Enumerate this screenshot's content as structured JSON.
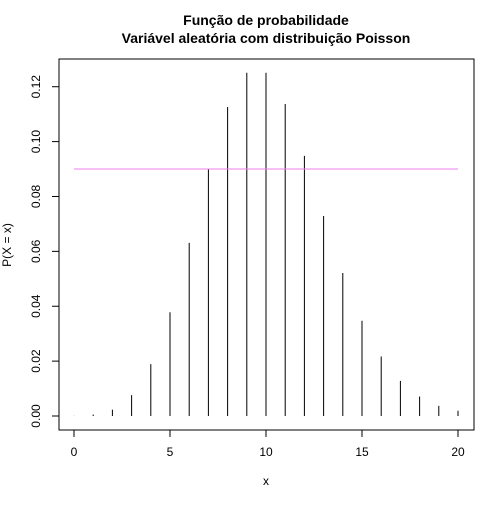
{
  "chart_data": {
    "type": "bar",
    "title": "Função de probabilidade",
    "subtitle": "Variável aleatória com distribuição Poisson",
    "xlabel": "x",
    "ylabel": "P(X = x)",
    "x": [
      0,
      1,
      2,
      3,
      4,
      5,
      6,
      7,
      8,
      9,
      10,
      11,
      12,
      13,
      14,
      15,
      16,
      17,
      18,
      19,
      20
    ],
    "values": [
      5e-05,
      0.0005,
      0.0023,
      0.0076,
      0.0189,
      0.0378,
      0.0631,
      0.0901,
      0.1126,
      0.1251,
      0.1251,
      0.1137,
      0.0948,
      0.0729,
      0.0521,
      0.0347,
      0.0217,
      0.0128,
      0.0071,
      0.0037,
      0.0019
    ],
    "xlim": [
      0,
      20
    ],
    "ylim": [
      0,
      0.125
    ],
    "x_ticks": [
      0,
      5,
      10,
      15,
      20
    ],
    "x_tick_labels": [
      "0",
      "5",
      "10",
      "15",
      "20"
    ],
    "y_ticks": [
      0,
      0.02,
      0.04,
      0.06,
      0.08,
      0.1,
      0.12
    ],
    "y_tick_labels": [
      "0.00",
      "0.02",
      "0.04",
      "0.06",
      "0.08",
      "0.10",
      "0.12"
    ],
    "reference_line": {
      "y": 0.09,
      "color": "#ee82ee"
    },
    "bar_color": "#000000",
    "grid": false,
    "legend": "none"
  }
}
